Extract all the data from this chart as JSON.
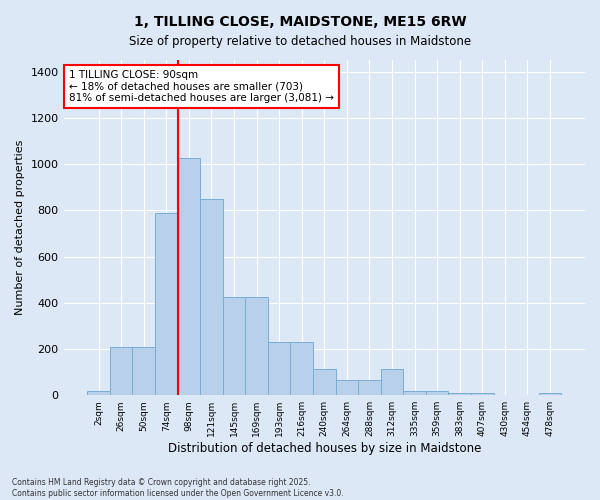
{
  "title": "1, TILLING CLOSE, MAIDSTONE, ME15 6RW",
  "subtitle": "Size of property relative to detached houses in Maidstone",
  "xlabel": "Distribution of detached houses by size in Maidstone",
  "ylabel": "Number of detached properties",
  "categories": [
    "2sqm",
    "26sqm",
    "50sqm",
    "74sqm",
    "98sqm",
    "121sqm",
    "145sqm",
    "169sqm",
    "193sqm",
    "216sqm",
    "240sqm",
    "264sqm",
    "288sqm",
    "312sqm",
    "335sqm",
    "359sqm",
    "383sqm",
    "407sqm",
    "430sqm",
    "454sqm",
    "478sqm"
  ],
  "values": [
    20,
    210,
    210,
    790,
    1025,
    850,
    425,
    425,
    230,
    230,
    115,
    65,
    65,
    115,
    20,
    20,
    10,
    10,
    0,
    0,
    10
  ],
  "bar_color": "#b8d0ea",
  "bar_edge_color": "#7aadd4",
  "vline_bar_index": 4,
  "vline_color": "red",
  "annotation_text": "1 TILLING CLOSE: 90sqm\n← 18% of detached houses are smaller (703)\n81% of semi-detached houses are larger (3,081) →",
  "annotation_box_color": "white",
  "annotation_box_edge_color": "red",
  "background_color": "#dce8f5",
  "plot_bg_color": "#dce8f5",
  "ylim": [
    0,
    1450
  ],
  "yticks": [
    0,
    200,
    400,
    600,
    800,
    1000,
    1200,
    1400
  ],
  "footer": "Contains HM Land Registry data © Crown copyright and database right 2025.\nContains public sector information licensed under the Open Government Licence v3.0."
}
